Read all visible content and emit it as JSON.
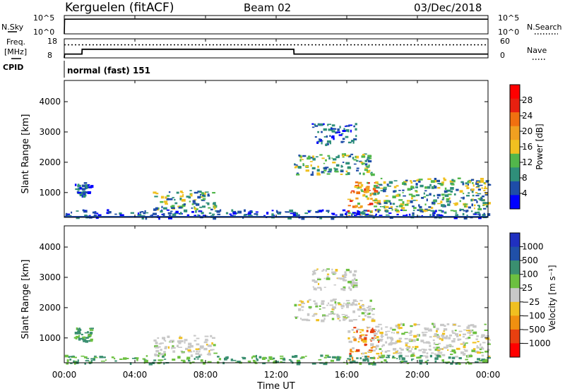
{
  "header": {
    "station": "Kerguelen (fitACF)",
    "beam": "Beam 02",
    "date": "03/Dec/2018"
  },
  "left_labels": {
    "nsky": "N.Sky",
    "freq_line1": "Freq.",
    "freq_line2": "[MHz]",
    "cpid": "CPID"
  },
  "right_labels": {
    "nsearch": "N.Search",
    "nave": "Nave"
  },
  "cpid_text": "normal (fast) 151",
  "xaxis": {
    "label": "Time UT",
    "ticks": [
      "00:00",
      "04:00",
      "08:00",
      "12:00",
      "16:00",
      "20:00",
      "00:00"
    ]
  },
  "chart_data": [
    {
      "type": "line",
      "title": "N.Sky / N.Search",
      "ylabels_left": [
        "10^5",
        "10^0"
      ],
      "ylabels_right": [
        "10^5",
        "10^0"
      ],
      "x_hours": [
        0,
        0.02,
        0.05,
        4,
        8,
        12,
        16,
        20,
        24
      ],
      "series": [
        {
          "name": "N.Sky",
          "values": [
            0,
            0.8,
            0.8,
            0.81,
            0.8,
            0.8,
            0.81,
            0.8,
            0.8
          ]
        }
      ]
    },
    {
      "type": "line",
      "title": "Freq / Nave",
      "ylabels_left": [
        "18",
        "8"
      ],
      "ylabels_right": [
        "60",
        "0"
      ],
      "ylim_left": [
        8,
        18
      ],
      "ylim_right": [
        0,
        60
      ],
      "series": [
        {
          "name": "Freq",
          "x_hours": [
            0,
            0.02,
            1,
            1.01,
            13,
            13.01,
            24
          ],
          "values": [
            8,
            10,
            10,
            12.5,
            12.5,
            10,
            10
          ]
        },
        {
          "name": "Nave",
          "x_hours": [
            0,
            24
          ],
          "values": [
            41,
            41
          ]
        }
      ]
    },
    {
      "type": "heatmap",
      "title": "Power",
      "ylabel": "Slant Range [km]",
      "yticks": [
        "1000",
        "2000",
        "3000",
        "4000"
      ],
      "ylim": [
        180,
        4700
      ],
      "xlim_hours": [
        0,
        24
      ],
      "colorbar": {
        "label": "Power [dB]",
        "ticks": [
          "4",
          "8",
          "12",
          "16",
          "20",
          "24",
          "28"
        ],
        "range": [
          0,
          30
        ],
        "colors": [
          "#0000ff",
          "#1e4da8",
          "#2f8f7a",
          "#52b74b",
          "#f0c020",
          "#f0a020",
          "#f07010",
          "#e82010",
          "#ff0000"
        ]
      },
      "regions": [
        {
          "t0": 0.5,
          "t1": 1.5,
          "r0": 900,
          "r1": 1350,
          "level": "low"
        },
        {
          "t0": 5.0,
          "t1": 8.5,
          "r0": 450,
          "r1": 1100,
          "level": "mid"
        },
        {
          "t0": 13.0,
          "t1": 17.5,
          "r0": 1600,
          "r1": 2300,
          "level": "mid"
        },
        {
          "t0": 14.0,
          "t1": 16.5,
          "r0": 2600,
          "r1": 3300,
          "level": "low"
        },
        {
          "t0": 16.0,
          "t1": 17.8,
          "r0": 200,
          "r1": 1400,
          "level": "high"
        },
        {
          "t0": 17.5,
          "t1": 24,
          "r0": 400,
          "r1": 1500,
          "level": "mid"
        },
        {
          "t0": 0,
          "t1": 24,
          "r0": 180,
          "r1": 450,
          "level": "low"
        }
      ]
    },
    {
      "type": "heatmap",
      "title": "Velocity",
      "ylabel": "Slant Range [km]",
      "yticks": [
        "1000",
        "2000",
        "3000",
        "4000"
      ],
      "ylim": [
        180,
        4700
      ],
      "xlim_hours": [
        0,
        24
      ],
      "colorbar": {
        "label": "Velocity [m s⁻¹]",
        "ticks": [
          "1000",
          "500",
          "100",
          "25",
          "−25",
          "−100",
          "−500",
          "−1000"
        ],
        "colors": [
          "#2030c0",
          "#2050a8",
          "#3a8f70",
          "#6cc040",
          "#c8c8c8",
          "#f0c020",
          "#f09010",
          "#e84010",
          "#ff0000"
        ]
      },
      "regions": [
        {
          "t0": 0.5,
          "t1": 1.5,
          "r0": 900,
          "r1": 1350,
          "level": "pos"
        },
        {
          "t0": 5.0,
          "t1": 8.5,
          "r0": 450,
          "r1": 1100,
          "level": "gray"
        },
        {
          "t0": 13.0,
          "t1": 17.5,
          "r0": 1600,
          "r1": 2300,
          "level": "gray"
        },
        {
          "t0": 14.0,
          "t1": 16.5,
          "r0": 2600,
          "r1": 3300,
          "level": "gray"
        },
        {
          "t0": 16.0,
          "t1": 17.8,
          "r0": 200,
          "r1": 1400,
          "level": "neg"
        },
        {
          "t0": 17.5,
          "t1": 24,
          "r0": 400,
          "r1": 1500,
          "level": "gray"
        },
        {
          "t0": 0,
          "t1": 24,
          "r0": 180,
          "r1": 450,
          "level": "pos"
        }
      ]
    }
  ]
}
